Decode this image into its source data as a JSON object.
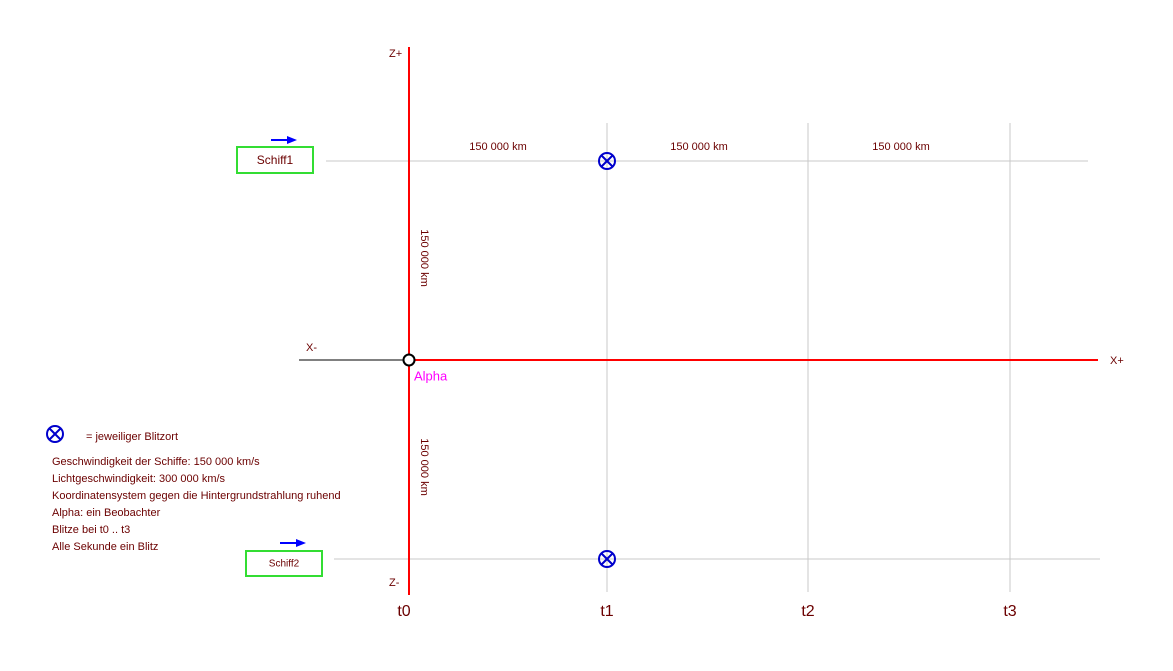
{
  "axes": {
    "z_plus": "Z+",
    "z_minus": "Z-",
    "x_minus": "X-",
    "x_plus": "X+"
  },
  "ships": [
    "Schiff1",
    "Schiff2"
  ],
  "distances": {
    "horizontal": [
      "150 000 km",
      "150 000 km",
      "150 000 km"
    ],
    "vertical": [
      "150 000 km",
      "150 000 km"
    ]
  },
  "observer": "Alpha",
  "time_labels": [
    "t0",
    "t1",
    "t2",
    "t3"
  ],
  "legend": "=  jeweiliger Blitzort",
  "notes": [
    "Geschwindigkeit der Schiffe: 150 000 km/s",
    "Lichtgeschwindigkeit: 300 000 km/s",
    "Koordinatensystem gegen die Hintergrundstrahlung ruhend",
    "Alpha:  ein Beobachter",
    "Blitze bei t0 .. t3",
    "Alle Sekunde ein Blitz"
  ]
}
